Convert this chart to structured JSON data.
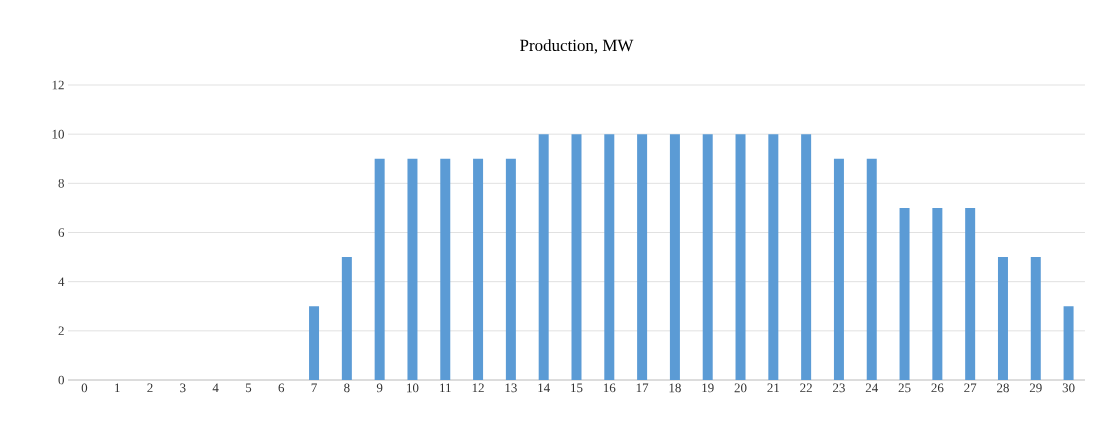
{
  "chart_data": {
    "type": "bar",
    "title": "Production, MW",
    "categories": [
      "0",
      "1",
      "2",
      "3",
      "4",
      "5",
      "6",
      "7",
      "8",
      "9",
      "10",
      "11",
      "12",
      "13",
      "14",
      "15",
      "16",
      "17",
      "18",
      "19",
      "20",
      "21",
      "22",
      "23",
      "24",
      "25",
      "26",
      "27",
      "28",
      "29",
      "30"
    ],
    "values": [
      0,
      0,
      0,
      0,
      0,
      0,
      0,
      3,
      5,
      9,
      9,
      9,
      9,
      9,
      10,
      10,
      10,
      10,
      10,
      10,
      10,
      10,
      10,
      9,
      9,
      7,
      7,
      7,
      5,
      5,
      3
    ],
    "color": "#5b9bd5",
    "ylim": [
      0,
      12
    ],
    "yticks": [
      0,
      2,
      4,
      6,
      8,
      10,
      12
    ],
    "grid": "y"
  }
}
